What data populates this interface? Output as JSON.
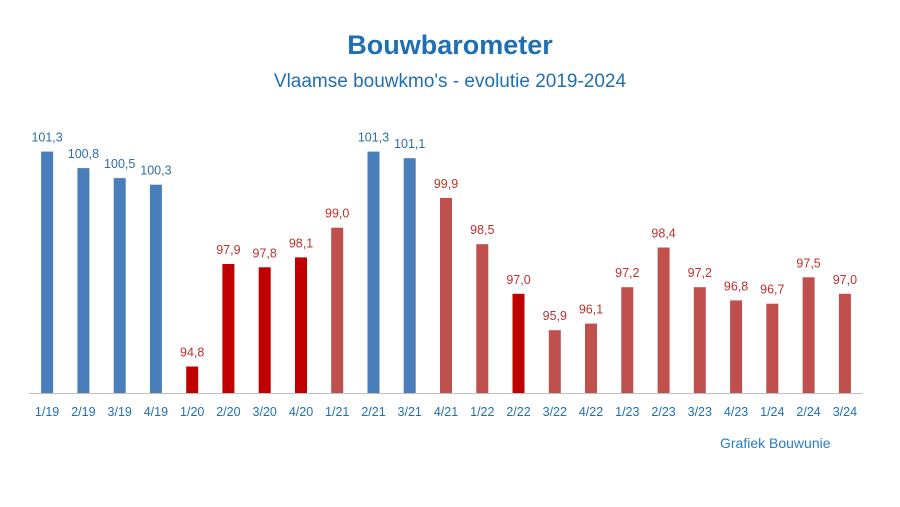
{
  "colors": {
    "blue": "#4a7ebb",
    "red": "#c00000",
    "rose": "#c0504d",
    "blue_text": "#2f6ea8",
    "red_text": "#c0302d",
    "axis": "#bfbfbf",
    "tick_text": "#1f6fb2"
  },
  "chart_data": {
    "type": "bar",
    "title": "Bouwbarometer",
    "subtitle": "Vlaamse bouwkmo's - evolutie 2019-2024",
    "credit": "Grafiek Bouwunie",
    "categories": [
      "1/19",
      "2/19",
      "3/19",
      "4/19",
      "1/20",
      "2/20",
      "3/20",
      "4/20",
      "1/21",
      "2/21",
      "3/21",
      "4/21",
      "1/22",
      "2/22",
      "3/22",
      "4/22",
      "1/23",
      "2/23",
      "3/23",
      "4/23",
      "1/24",
      "2/24",
      "3/24"
    ],
    "values": [
      101.3,
      100.8,
      100.5,
      100.3,
      94.8,
      97.9,
      97.8,
      98.1,
      99.0,
      101.3,
      101.1,
      99.9,
      98.5,
      97.0,
      95.9,
      96.1,
      97.2,
      98.4,
      97.2,
      96.8,
      96.7,
      97.5,
      97.0
    ],
    "value_labels": [
      "101,3",
      "100,8",
      "100,5",
      "100,3",
      "94,8",
      "97,9",
      "97,8",
      "98,1",
      "99,0",
      "101,3",
      "101,1",
      "99,9",
      "98,5",
      "97,0",
      "95,9",
      "96,1",
      "97,2",
      "98,4",
      "97,2",
      "96,8",
      "96,7",
      "97,5",
      "97,0"
    ],
    "bar_colors": [
      "blue",
      "blue",
      "blue",
      "blue",
      "red",
      "red",
      "red",
      "red",
      "rose",
      "blue",
      "blue",
      "rose",
      "rose",
      "red",
      "rose",
      "rose",
      "rose",
      "rose",
      "rose",
      "rose",
      "rose",
      "rose",
      "rose"
    ],
    "ylim": [
      94.0,
      101.5
    ],
    "grid": false,
    "legend": "none"
  }
}
